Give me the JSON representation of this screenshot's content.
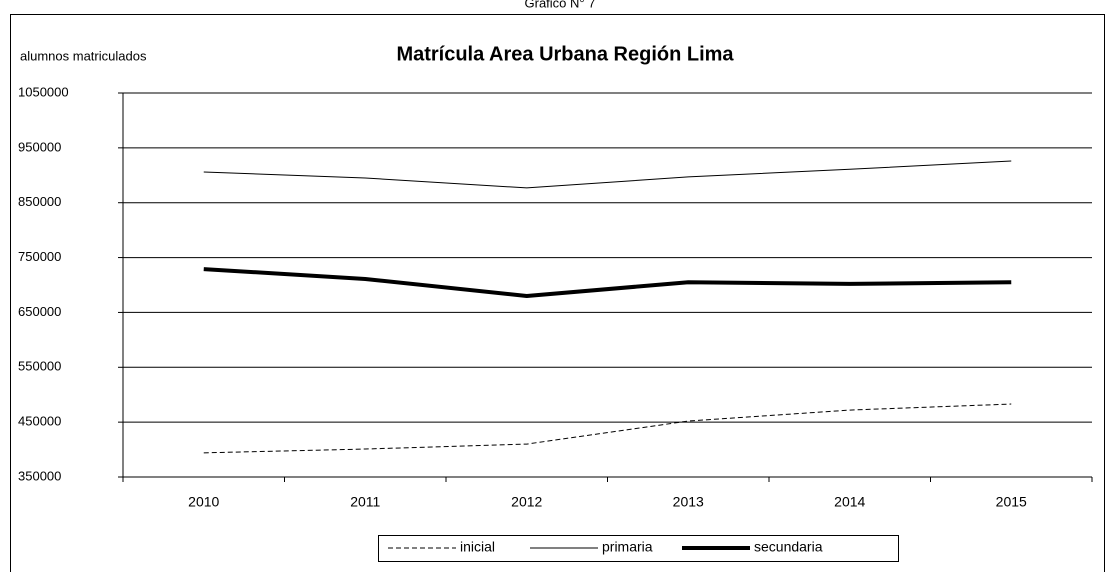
{
  "caption": "Gráfico N° 7",
  "chart_data": {
    "type": "line",
    "title": "Matrícula Area Urbana Región Lima",
    "y_label": "alumnos matriculados",
    "categories": [
      "2010",
      "2011",
      "2012",
      "2013",
      "2014",
      "2015"
    ],
    "series": [
      {
        "name": "inicial",
        "color": "#000000",
        "line_style": "dashed",
        "values": [
          394000,
          401000,
          410000,
          452000,
          472000,
          483000
        ]
      },
      {
        "name": "primaria",
        "color": "#000000",
        "line_style": "thin",
        "values": [
          906000,
          895000,
          877000,
          897000,
          911000,
          926000
        ]
      },
      {
        "name": "secundaria",
        "color": "#000000",
        "line_style": "thick",
        "values": [
          729000,
          711000,
          680000,
          705000,
          702000,
          705000
        ]
      }
    ],
    "ylim": [
      350000,
      1050000
    ],
    "yticks": [
      350000,
      450000,
      550000,
      650000,
      750000,
      850000,
      950000,
      1050000
    ],
    "grid": true,
    "legend": "bottom"
  }
}
